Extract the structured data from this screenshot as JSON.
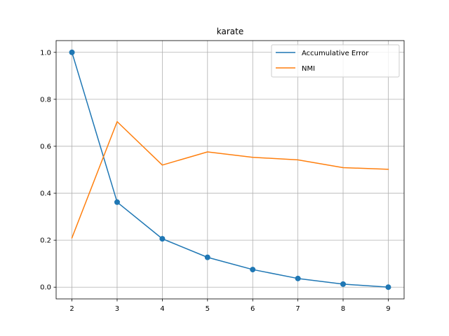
{
  "chart_data": {
    "type": "line",
    "title": "karate",
    "xlabel": "",
    "ylabel": "",
    "x": [
      2,
      3,
      4,
      5,
      6,
      7,
      8,
      9
    ],
    "xlim": [
      1.65,
      9.35
    ],
    "ylim": [
      -0.05,
      1.05
    ],
    "xticks": [
      "2",
      "3",
      "4",
      "5",
      "6",
      "7",
      "8",
      "9"
    ],
    "yticks": [
      "0.0",
      "0.2",
      "0.4",
      "0.6",
      "0.8",
      "1.0"
    ],
    "grid": true,
    "legend_position": "top-right",
    "series": [
      {
        "name": "Accumulative Error",
        "color": "#1f77b4",
        "markers": true,
        "values": [
          1.0,
          0.362,
          0.206,
          0.127,
          0.075,
          0.037,
          0.013,
          0.0
        ]
      },
      {
        "name": "NMI",
        "color": "#ff7f0e",
        "markers": false,
        "values": [
          0.21,
          0.705,
          0.52,
          0.576,
          0.553,
          0.542,
          0.509,
          0.502
        ]
      }
    ]
  }
}
